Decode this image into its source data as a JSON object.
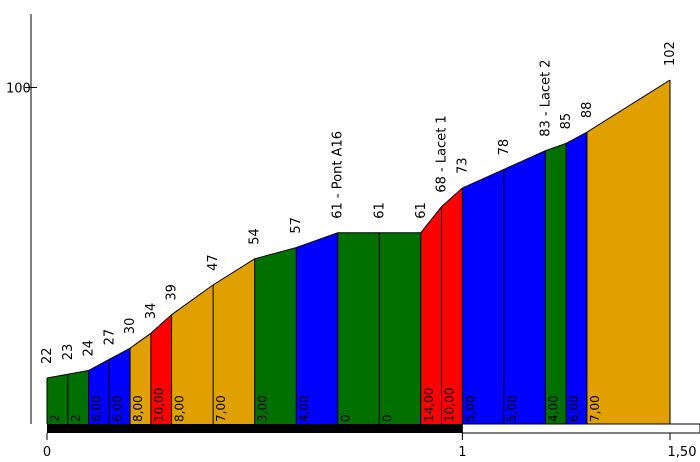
{
  "chart_data": {
    "type": "area",
    "title": "",
    "xlabel": "",
    "ylabel": "",
    "xlim": [
      0,
      1.5
    ],
    "ylim": [
      0,
      120
    ],
    "x_ticks": [
      "0",
      "1",
      "1,50"
    ],
    "y_ticks": [
      "100"
    ],
    "colors": {
      "green": "#007000",
      "blue": "#0000ff",
      "red": "#ff0000",
      "orange": "#e0a000",
      "outline": "#000000",
      "bar": "#000000"
    },
    "profile": [
      {
        "x": 0.0,
        "elev": 22
      },
      {
        "x": 0.05,
        "elev": 23
      },
      {
        "x": 0.1,
        "elev": 24
      },
      {
        "x": 0.15,
        "elev": 27
      },
      {
        "x": 0.2,
        "elev": 30
      },
      {
        "x": 0.25,
        "elev": 34
      },
      {
        "x": 0.3,
        "elev": 39
      },
      {
        "x": 0.4,
        "elev": 47
      },
      {
        "x": 0.5,
        "elev": 54
      },
      {
        "x": 0.6,
        "elev": 57
      },
      {
        "x": 0.7,
        "elev": 61,
        "name": "Pont A16"
      },
      {
        "x": 0.8,
        "elev": 61
      },
      {
        "x": 0.9,
        "elev": 61
      },
      {
        "x": 0.95,
        "elev": 68,
        "name": "Lacet 1"
      },
      {
        "x": 1.0,
        "elev": 73
      },
      {
        "x": 1.1,
        "elev": 78
      },
      {
        "x": 1.2,
        "elev": 83,
        "name": "Lacet 2"
      },
      {
        "x": 1.25,
        "elev": 85
      },
      {
        "x": 1.3,
        "elev": 88
      },
      {
        "x": 1.5,
        "elev": 102
      }
    ],
    "segments": [
      {
        "grade": "2",
        "color": "green"
      },
      {
        "grade": "2",
        "color": "green"
      },
      {
        "grade": "6,00",
        "color": "blue"
      },
      {
        "grade": "6,00",
        "color": "blue"
      },
      {
        "grade": "8,00",
        "color": "orange"
      },
      {
        "grade": "10,00",
        "color": "red"
      },
      {
        "grade": "8,00",
        "color": "orange"
      },
      {
        "grade": "7,00",
        "color": "orange"
      },
      {
        "grade": "3,00",
        "color": "green"
      },
      {
        "grade": "4,00",
        "color": "blue"
      },
      {
        "grade": "0",
        "color": "green"
      },
      {
        "grade": "0",
        "color": "green"
      },
      {
        "grade": "14,00",
        "color": "red"
      },
      {
        "grade": "10,00",
        "color": "red"
      },
      {
        "grade": "5,00",
        "color": "blue"
      },
      {
        "grade": "5,00",
        "color": "blue"
      },
      {
        "grade": "4,00",
        "color": "green"
      },
      {
        "grade": "6,00",
        "color": "blue"
      },
      {
        "grade": "7,00",
        "color": "orange"
      }
    ]
  }
}
